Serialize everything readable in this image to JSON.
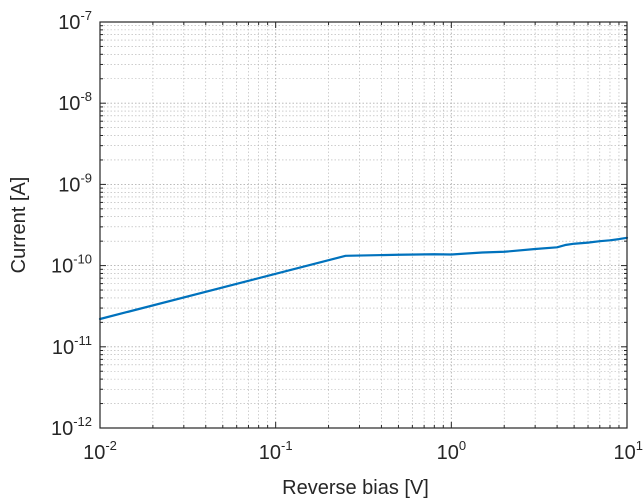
{
  "chart_data": {
    "type": "line",
    "title": "",
    "xlabel": "Reverse bias [V]",
    "ylabel": "Current [A]",
    "x_scale": "log",
    "y_scale": "log",
    "xlim": [
      0.01,
      10
    ],
    "ylim": [
      1e-12,
      1e-07
    ],
    "grid": true,
    "x_ticks": [
      {
        "value": 0.01,
        "base": "10",
        "exp": "-2"
      },
      {
        "value": 0.1,
        "base": "10",
        "exp": "-1"
      },
      {
        "value": 1,
        "base": "10",
        "exp": "0"
      },
      {
        "value": 10,
        "base": "10",
        "exp": "1"
      }
    ],
    "y_ticks": [
      {
        "value": 1e-12,
        "base": "10",
        "exp": "-12"
      },
      {
        "value": 1e-11,
        "base": "10",
        "exp": "-11"
      },
      {
        "value": 1e-10,
        "base": "10",
        "exp": "-10"
      },
      {
        "value": 1e-09,
        "base": "10",
        "exp": "-9"
      },
      {
        "value": 1e-08,
        "base": "10",
        "exp": "-8"
      },
      {
        "value": 1e-07,
        "base": "10",
        "exp": "-7"
      }
    ],
    "series": [
      {
        "color": "#0072bd",
        "x": [
          0.01,
          0.25,
          0.5,
          0.8,
          1.0,
          1.5,
          2.0,
          3.0,
          4.0,
          4.5,
          5.0,
          6.0,
          7.0,
          8.0,
          9.0,
          10.0
        ],
        "y": [
          2.2e-11,
          1.32e-10,
          1.36e-10,
          1.38e-10,
          1.37e-10,
          1.45e-10,
          1.48e-10,
          1.6e-10,
          1.68e-10,
          1.8e-10,
          1.86e-10,
          1.92e-10,
          2e-10,
          2.05e-10,
          2.12e-10,
          2.2e-10
        ]
      }
    ]
  },
  "colors": {
    "line": "#0072bd",
    "axis": "#262626",
    "grid": "#b0b0b0"
  }
}
